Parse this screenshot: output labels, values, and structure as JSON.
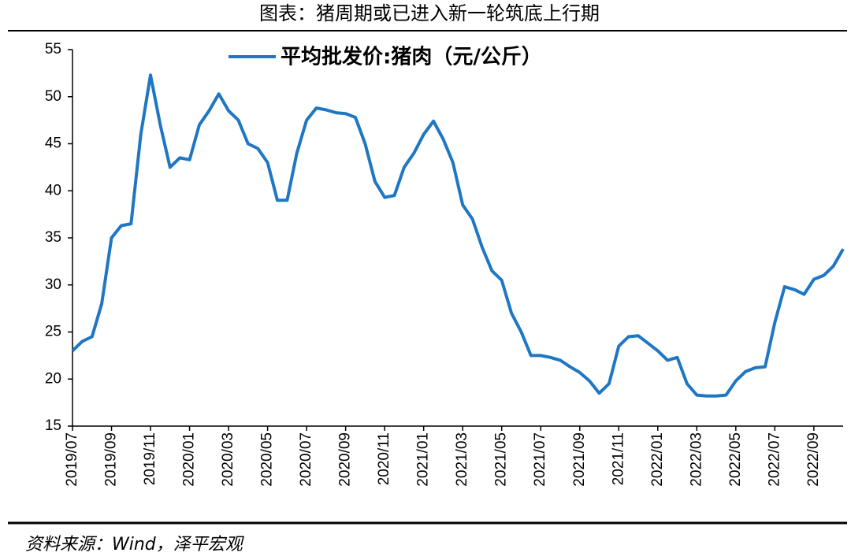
{
  "chart_data": {
    "type": "line",
    "title": "图表：猪周期或已进入新一轮筑底上行期",
    "source": "资料来源：Wind，泽平宏观",
    "categories": [
      "2019/07",
      null,
      null,
      null,
      "2019/09",
      null,
      null,
      null,
      "2019/11",
      null,
      null,
      null,
      "2020/01",
      null,
      null,
      null,
      "2020/03",
      null,
      null,
      null,
      "2020/05",
      null,
      null,
      null,
      "2020/07",
      null,
      null,
      null,
      "2020/09",
      null,
      null,
      null,
      "2020/11",
      null,
      null,
      null,
      "2021/01",
      null,
      null,
      null,
      "2021/03",
      null,
      null,
      null,
      "2021/05",
      null,
      null,
      null,
      "2021/07",
      null,
      null,
      null,
      "2021/09",
      null,
      null,
      null,
      "2021/11",
      null,
      null,
      null,
      "2022/01",
      null,
      null,
      null,
      "2022/03",
      null,
      null,
      null,
      "2022/05",
      null,
      null,
      null,
      "2022/07",
      null,
      null,
      null,
      "2022/09",
      null,
      null,
      null
    ],
    "series": [
      {
        "name": "平均批发价:猪肉（元/公斤）",
        "color": "#1f77c4",
        "values": [
          23,
          24,
          24.5,
          28,
          35,
          36.3,
          36.5,
          46,
          52.3,
          47,
          42.5,
          43.5,
          43.3,
          47,
          48.5,
          50.3,
          48.5,
          47.5,
          45,
          44.5,
          43,
          39,
          39,
          44,
          47.5,
          48.8,
          48.6,
          48.3,
          48.2,
          47.8,
          45,
          41,
          39.3,
          39.5,
          42.5,
          44,
          46,
          47.4,
          45.5,
          43,
          38.5,
          37,
          34,
          31.5,
          30.5,
          27,
          25,
          22.5,
          22.5,
          22.3,
          22,
          21.3,
          20.7,
          19.8,
          18.5,
          19.5,
          23.5,
          24.5,
          24.6,
          23.8,
          23,
          22,
          22.3,
          19.5,
          18.3,
          18.2,
          18.2,
          18.3,
          19.8,
          20.8,
          21.2,
          21.3,
          26,
          29.8,
          29.5,
          29,
          30.6,
          31,
          32,
          33.8
        ]
      }
    ],
    "ylim": [
      15,
      55
    ],
    "yticks": [
      15,
      20,
      25,
      30,
      35,
      40,
      45,
      50,
      55
    ],
    "grid": false
  }
}
